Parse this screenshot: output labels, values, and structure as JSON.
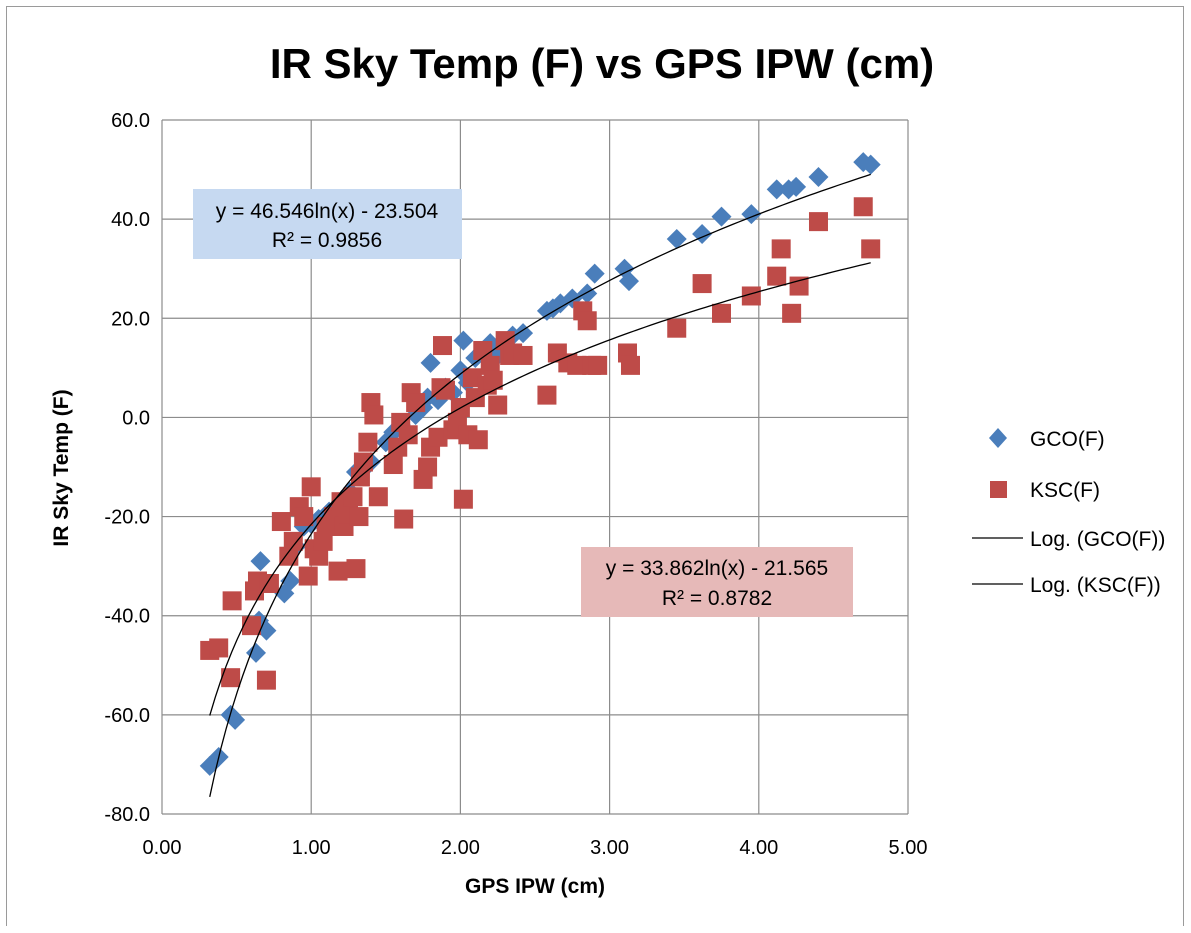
{
  "chart_data": {
    "type": "scatter",
    "title": "IR Sky Temp (F) vs GPS IPW (cm)",
    "xlabel": "GPS IPW (cm)",
    "ylabel": "IR Sky Temp (F)",
    "xlim": [
      0,
      5
    ],
    "ylim": [
      -80,
      60
    ],
    "x_ticks": [
      "0.00",
      "1.00",
      "2.00",
      "3.00",
      "4.00",
      "5.00"
    ],
    "y_ticks": [
      "-80.0",
      "-60.0",
      "-40.0",
      "-20.0",
      "0.0",
      "20.0",
      "40.0",
      "60.0"
    ],
    "grid": true,
    "legend_position": "right",
    "series": [
      {
        "name": "GCO(F)",
        "marker": "diamond",
        "color": "#4a7ebb",
        "points": [
          [
            0.32,
            -70.3
          ],
          [
            0.38,
            -68.5
          ],
          [
            0.46,
            -60.0
          ],
          [
            0.49,
            -61.0
          ],
          [
            0.63,
            -47.5
          ],
          [
            0.65,
            -41.0
          ],
          [
            0.66,
            -29.0
          ],
          [
            0.7,
            -43.0
          ],
          [
            0.82,
            -35.5
          ],
          [
            0.86,
            -33.0
          ],
          [
            0.9,
            -26.0
          ],
          [
            0.95,
            -22.0
          ],
          [
            1.0,
            -21.5
          ],
          [
            1.05,
            -20.5
          ],
          [
            1.12,
            -19.0
          ],
          [
            1.2,
            -17.0
          ],
          [
            1.26,
            -15.0
          ],
          [
            1.3,
            -11.0
          ],
          [
            1.35,
            -10.5
          ],
          [
            1.4,
            -9.0
          ],
          [
            1.5,
            -5.0
          ],
          [
            1.55,
            -3.0
          ],
          [
            1.6,
            -1.5
          ],
          [
            1.7,
            0.5
          ],
          [
            1.75,
            2.0
          ],
          [
            1.78,
            4.0
          ],
          [
            1.8,
            11.0
          ],
          [
            1.85,
            3.5
          ],
          [
            1.9,
            6.0
          ],
          [
            1.95,
            5.0
          ],
          [
            2.0,
            9.5
          ],
          [
            2.02,
            15.5
          ],
          [
            2.05,
            7.0
          ],
          [
            2.1,
            12.0
          ],
          [
            2.15,
            13.5
          ],
          [
            2.2,
            15.0
          ],
          [
            2.25,
            12.5
          ],
          [
            2.3,
            14.0
          ],
          [
            2.35,
            16.5
          ],
          [
            2.42,
            17.0
          ],
          [
            2.58,
            21.5
          ],
          [
            2.62,
            22.0
          ],
          [
            2.67,
            23.0
          ],
          [
            2.75,
            24.0
          ],
          [
            2.85,
            25.0
          ],
          [
            2.9,
            29.0
          ],
          [
            3.1,
            30.0
          ],
          [
            3.13,
            27.5
          ],
          [
            3.45,
            36.0
          ],
          [
            3.62,
            37.0
          ],
          [
            3.75,
            40.5
          ],
          [
            3.95,
            41.0
          ],
          [
            4.12,
            46.0
          ],
          [
            4.2,
            46.0
          ],
          [
            4.25,
            46.5
          ],
          [
            4.4,
            48.5
          ],
          [
            4.7,
            51.5
          ],
          [
            4.75,
            51.0
          ]
        ]
      },
      {
        "name": "KSC(F)",
        "marker": "square",
        "color": "#be4b48",
        "points": [
          [
            0.32,
            -47.0
          ],
          [
            0.38,
            -46.5
          ],
          [
            0.46,
            -52.5
          ],
          [
            0.47,
            -37.0
          ],
          [
            0.6,
            -42.0
          ],
          [
            0.62,
            -35.0
          ],
          [
            0.64,
            -33.0
          ],
          [
            0.7,
            -53.0
          ],
          [
            0.72,
            -33.5
          ],
          [
            0.8,
            -21.0
          ],
          [
            0.85,
            -28.0
          ],
          [
            0.88,
            -25.0
          ],
          [
            0.92,
            -18.0
          ],
          [
            0.95,
            -20.0
          ],
          [
            0.98,
            -32.0
          ],
          [
            1.0,
            -14.0
          ],
          [
            1.02,
            -26.5
          ],
          [
            1.05,
            -28.0
          ],
          [
            1.08,
            -25.0
          ],
          [
            1.1,
            -22.0
          ],
          [
            1.15,
            -20.0
          ],
          [
            1.18,
            -31.0
          ],
          [
            1.2,
            -17.0
          ],
          [
            1.22,
            -22.0
          ],
          [
            1.25,
            -19.5
          ],
          [
            1.28,
            -16.0
          ],
          [
            1.3,
            -30.5
          ],
          [
            1.32,
            -20.0
          ],
          [
            1.33,
            -12.0
          ],
          [
            1.35,
            -9.0
          ],
          [
            1.38,
            -5.0
          ],
          [
            1.4,
            3.0
          ],
          [
            1.42,
            0.5
          ],
          [
            1.45,
            -16.0
          ],
          [
            1.55,
            -9.5
          ],
          [
            1.58,
            -6.0
          ],
          [
            1.6,
            -1.0
          ],
          [
            1.62,
            -20.5
          ],
          [
            1.65,
            -3.5
          ],
          [
            1.67,
            5.0
          ],
          [
            1.7,
            3.0
          ],
          [
            1.75,
            -12.5
          ],
          [
            1.78,
            -10.0
          ],
          [
            1.8,
            -6.0
          ],
          [
            1.85,
            -4.0
          ],
          [
            1.87,
            6.0
          ],
          [
            1.88,
            14.5
          ],
          [
            1.9,
            5.5
          ],
          [
            1.95,
            -2.5
          ],
          [
            1.98,
            -1.0
          ],
          [
            2.0,
            2.0
          ],
          [
            2.02,
            -16.5
          ],
          [
            2.05,
            -3.5
          ],
          [
            2.08,
            8.0
          ],
          [
            2.1,
            4.0
          ],
          [
            2.12,
            -4.5
          ],
          [
            2.15,
            13.5
          ],
          [
            2.18,
            6.5
          ],
          [
            2.2,
            10.5
          ],
          [
            2.22,
            7.5
          ],
          [
            2.25,
            2.5
          ],
          [
            2.3,
            15.5
          ],
          [
            2.33,
            12.5
          ],
          [
            2.35,
            13.0
          ],
          [
            2.42,
            12.5
          ],
          [
            2.58,
            4.5
          ],
          [
            2.65,
            13.0
          ],
          [
            2.72,
            11.0
          ],
          [
            2.78,
            10.5
          ],
          [
            2.82,
            21.5
          ],
          [
            2.85,
            19.5
          ],
          [
            2.88,
            10.5
          ],
          [
            2.92,
            10.5
          ],
          [
            3.12,
            13.0
          ],
          [
            3.14,
            10.5
          ],
          [
            3.45,
            18.0
          ],
          [
            3.62,
            27.0
          ],
          [
            3.75,
            21.0
          ],
          [
            3.95,
            24.5
          ],
          [
            4.12,
            28.5
          ],
          [
            4.15,
            34.0
          ],
          [
            4.22,
            21.0
          ],
          [
            4.27,
            26.5
          ],
          [
            4.4,
            39.5
          ],
          [
            4.7,
            42.5
          ],
          [
            4.75,
            34.0
          ]
        ]
      }
    ],
    "trendlines": [
      {
        "name": "Log. (GCO(F))",
        "type": "log",
        "a": 46.546,
        "b": -23.504,
        "x_range": [
          0.32,
          4.75
        ],
        "color": "#000000",
        "equation": "y = 46.546ln(x) - 23.504",
        "r2": "R² = 0.9856",
        "label_fill": "#c6d9f1"
      },
      {
        "name": "Log. (KSC(F))",
        "type": "log",
        "a": 33.862,
        "b": -21.565,
        "x_range": [
          0.32,
          4.75
        ],
        "color": "#000000",
        "equation": "y = 33.862ln(x) - 21.565",
        "r2": "R² = 0.8782",
        "label_fill": "#e6b9b8"
      }
    ]
  }
}
